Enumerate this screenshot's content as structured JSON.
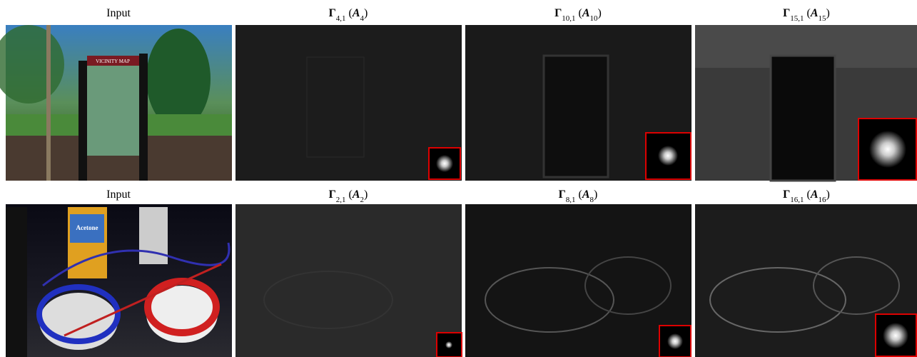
{
  "rows": [
    {
      "panels": [
        {
          "caption": [
            {
              "t": "Input"
            }
          ],
          "scene_text": "VICINITY MAP"
        },
        {
          "caption": [
            {
              "t": "Γ",
              "bold": true
            },
            {
              "t": "4,1",
              "sub": true
            },
            {
              "t": " ("
            },
            {
              "t": "A",
              "bold": true,
              "italic": true
            },
            {
              "t": "4",
              "sub": true
            },
            {
              "t": ")"
            }
          ]
        },
        {
          "caption": [
            {
              "t": "Γ",
              "bold": true
            },
            {
              "t": "10,1",
              "sub": true
            },
            {
              "t": " ("
            },
            {
              "t": "A",
              "bold": true,
              "italic": true
            },
            {
              "t": "10",
              "sub": true
            },
            {
              "t": ")"
            }
          ]
        },
        {
          "caption": [
            {
              "t": "Γ",
              "bold": true
            },
            {
              "t": "15,1",
              "sub": true
            },
            {
              "t": " ("
            },
            {
              "t": "A",
              "bold": true,
              "italic": true
            },
            {
              "t": "15",
              "sub": true
            },
            {
              "t": ")"
            }
          ]
        }
      ]
    },
    {
      "panels": [
        {
          "caption": [
            {
              "t": "Input"
            }
          ],
          "scene_text": "Acetone"
        },
        {
          "caption": [
            {
              "t": "Γ",
              "bold": true
            },
            {
              "t": "2,1",
              "sub": true
            },
            {
              "t": " ("
            },
            {
              "t": "A",
              "bold": true,
              "italic": true
            },
            {
              "t": "2",
              "sub": true
            },
            {
              "t": ")"
            }
          ]
        },
        {
          "caption": [
            {
              "t": "Γ",
              "bold": true
            },
            {
              "t": "8,1",
              "sub": true
            },
            {
              "t": " ("
            },
            {
              "t": "A",
              "bold": true,
              "italic": true
            },
            {
              "t": "8",
              "sub": true
            },
            {
              "t": ")"
            }
          ]
        },
        {
          "caption": [
            {
              "t": "Γ",
              "bold": true
            },
            {
              "t": "16,1",
              "sub": true
            },
            {
              "t": " ("
            },
            {
              "t": "A",
              "bold": true,
              "italic": true
            },
            {
              "t": "16",
              "sub": true
            },
            {
              "t": ")"
            }
          ]
        }
      ]
    }
  ]
}
